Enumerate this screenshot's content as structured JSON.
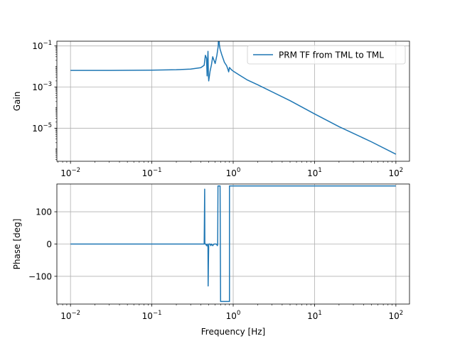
{
  "chart_data": [
    {
      "id": "gain",
      "type": "line",
      "title": "",
      "xlabel": "",
      "ylabel": "Gain",
      "xscale": "log",
      "yscale": "log",
      "xlim": [
        0.0068,
        147
      ],
      "ylim": [
        2.5e-07,
        0.17
      ],
      "xticks": [
        0.01,
        0.1,
        1,
        10,
        100
      ],
      "xtick_labels": [
        {
          "base": "10",
          "exp": "−2"
        },
        {
          "base": "10",
          "exp": "−1"
        },
        {
          "base": "10",
          "exp": "0"
        },
        {
          "base": "10",
          "exp": "1"
        },
        {
          "base": "10",
          "exp": "2"
        }
      ],
      "yticks": [
        1e-05,
        0.001,
        0.1
      ],
      "ytick_labels": [
        {
          "base": "10",
          "exp": "−5"
        },
        {
          "base": "10",
          "exp": "−3"
        },
        {
          "base": "10",
          "exp": "−1"
        }
      ],
      "grid": true,
      "legend": {
        "placement": "upper-right",
        "entries": [
          "PRM TF from TML to TML"
        ]
      },
      "series": [
        {
          "name": "PRM TF from TML to TML",
          "color": "#1f77b4",
          "x": [
            0.01,
            0.03,
            0.1,
            0.2,
            0.3,
            0.4,
            0.44,
            0.455,
            0.47,
            0.478,
            0.482,
            0.49,
            0.495,
            0.5,
            0.52,
            0.54,
            0.56,
            0.6,
            0.63,
            0.655,
            0.665,
            0.675,
            0.69,
            0.72,
            0.78,
            0.83,
            0.86,
            0.88,
            0.9,
            0.95,
            1.0,
            1.2,
            1.5,
            2.0,
            5.0,
            10.0,
            20.0,
            50.0,
            100.0
          ],
          "y": [
            0.0065,
            0.0065,
            0.0067,
            0.007,
            0.0075,
            0.0088,
            0.0115,
            0.035,
            0.025,
            0.0035,
            0.012,
            0.055,
            0.0045,
            0.002,
            0.006,
            0.012,
            0.03,
            0.014,
            0.035,
            0.1,
            0.8,
            0.12,
            0.07,
            0.04,
            0.016,
            0.011,
            0.0075,
            0.0055,
            0.009,
            0.007,
            0.006,
            0.0038,
            0.0022,
            0.0013,
            0.00022,
            5e-05,
            1.2e-05,
            2.2e-06,
            5.5e-07
          ]
        }
      ]
    },
    {
      "id": "phase",
      "type": "line",
      "title": "",
      "xlabel": "Frequency [Hz]",
      "ylabel": "Phase [deg]",
      "xscale": "log",
      "yscale": "linear",
      "xlim": [
        0.0068,
        147
      ],
      "ylim": [
        -186,
        186
      ],
      "xticks": [
        0.01,
        0.1,
        1,
        10,
        100
      ],
      "xtick_labels": [
        {
          "base": "10",
          "exp": "−2"
        },
        {
          "base": "10",
          "exp": "−1"
        },
        {
          "base": "10",
          "exp": "0"
        },
        {
          "base": "10",
          "exp": "1"
        },
        {
          "base": "10",
          "exp": "2"
        }
      ],
      "yticks": [
        -100,
        0,
        100
      ],
      "ytick_labels": [
        "−100",
        "0",
        "100"
      ],
      "grid": true,
      "series": [
        {
          "color": "#1f77b4",
          "x": [
            0.01,
            0.2,
            0.4,
            0.44,
            0.446,
            0.448,
            0.452,
            0.46,
            0.47,
            0.48,
            0.49,
            0.492,
            0.496,
            0.5,
            0.51,
            0.52,
            0.53,
            0.54,
            0.56,
            0.58,
            0.6,
            0.62,
            0.64,
            0.645,
            0.65,
            0.67,
            0.69,
            0.695,
            0.7,
            0.72,
            0.75,
            0.8,
            0.85,
            0.88,
            0.9,
            0.9001,
            1.0,
            2.0,
            10.0,
            100.0
          ],
          "y": [
            0,
            0,
            0,
            0,
            170,
            0,
            0,
            0,
            -5,
            0,
            -10,
            -130,
            -60,
            0,
            0,
            0,
            -5,
            0,
            -5,
            0,
            0,
            0,
            -5,
            0,
            180,
            180,
            180,
            -5,
            -178,
            -178,
            -178,
            -178,
            -178,
            -178,
            -178,
            180,
            180,
            180,
            180,
            180
          ]
        }
      ]
    }
  ]
}
